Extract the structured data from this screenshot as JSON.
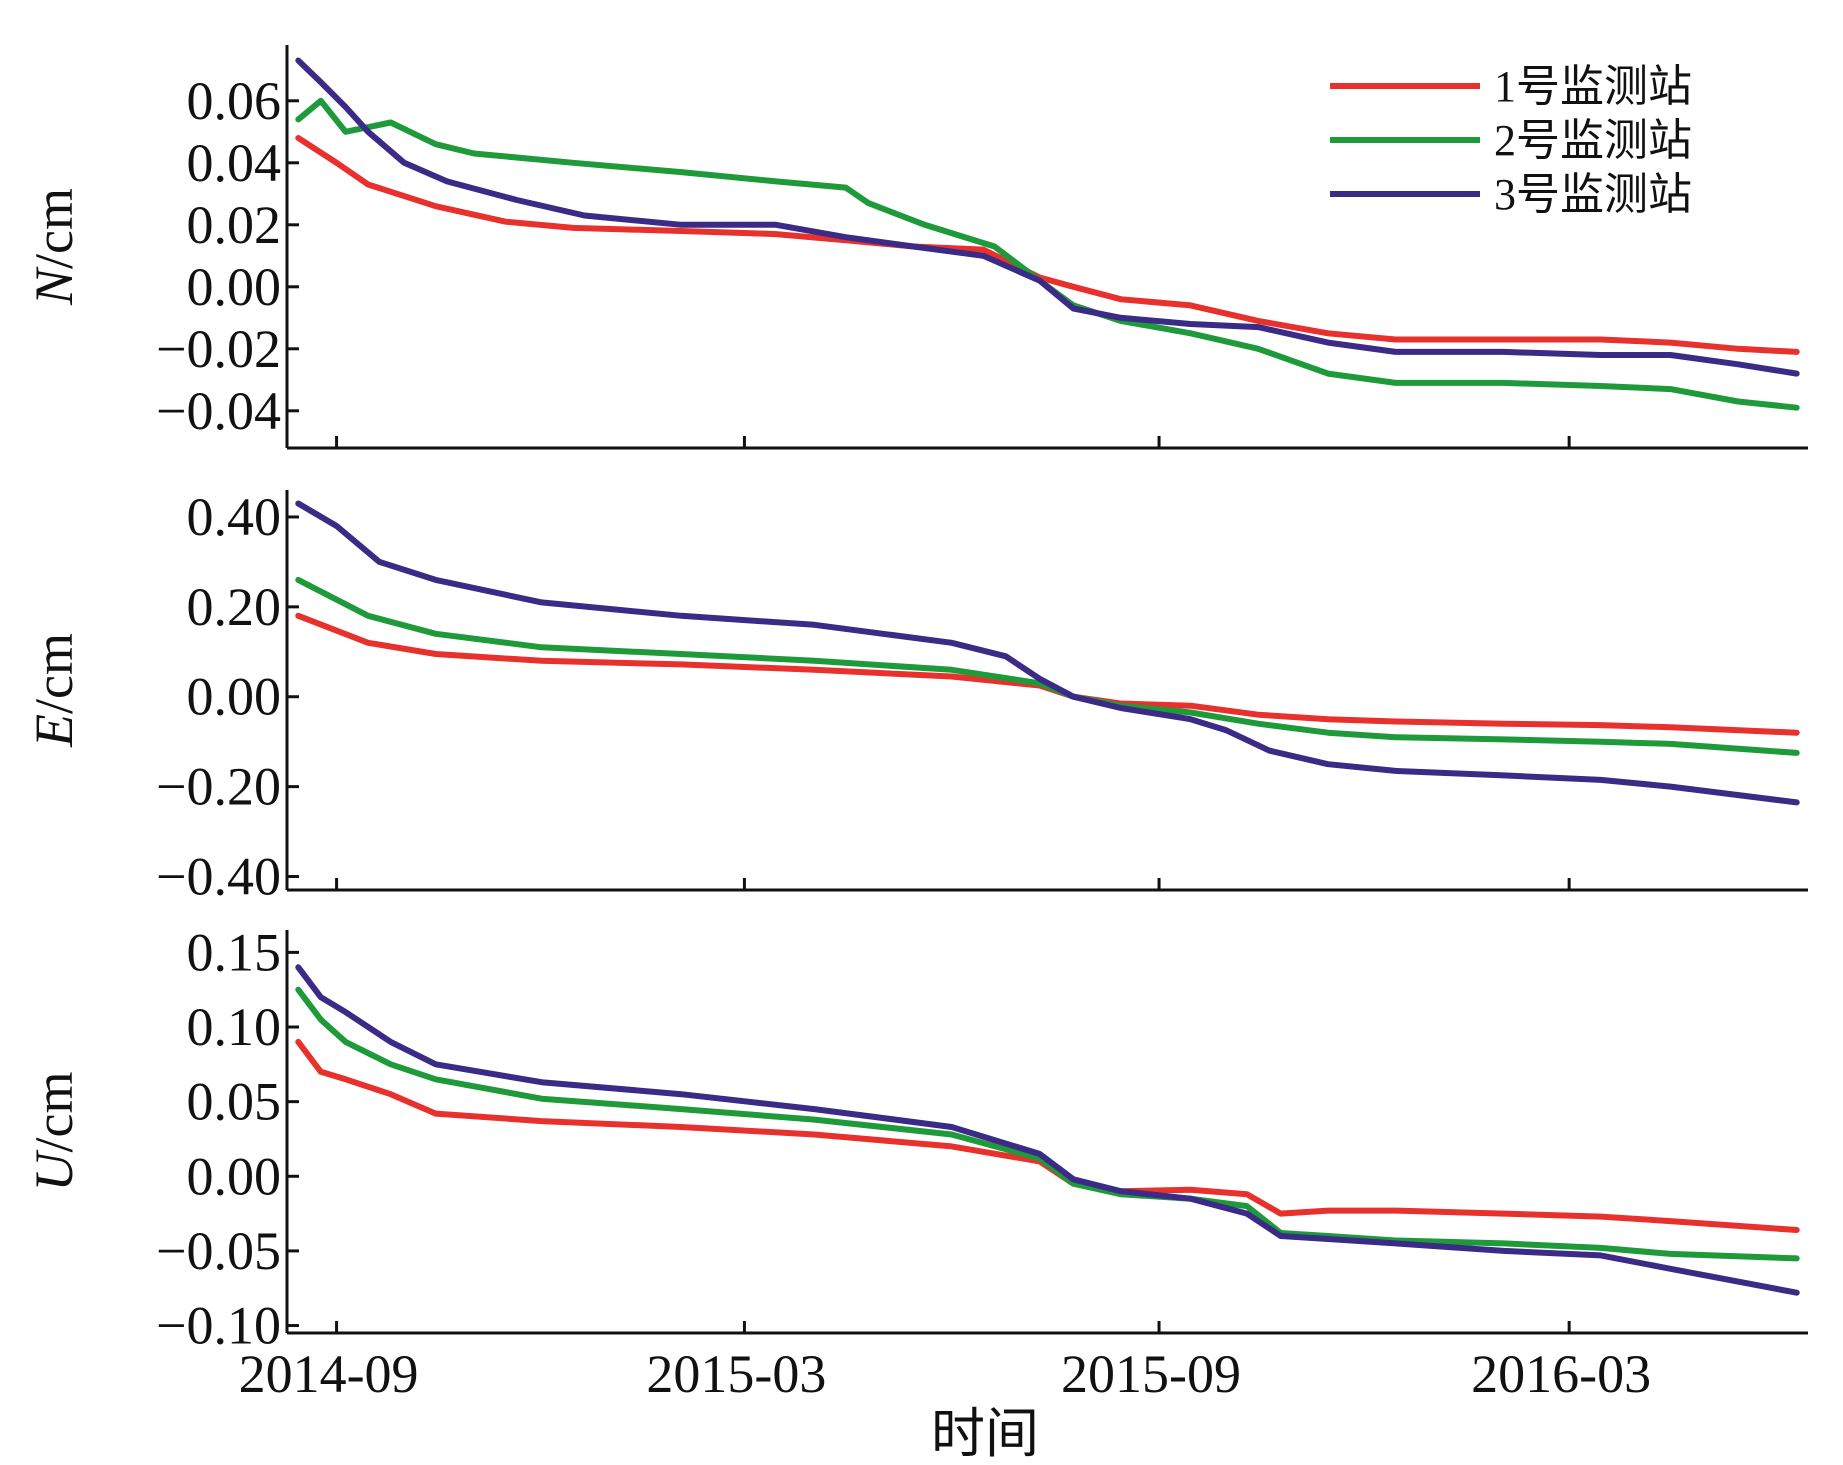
{
  "figure": {
    "x_axis_title": "时间",
    "x_ticks": [
      "2014-09",
      "2015-03",
      "2015-09",
      "2016-03"
    ],
    "legend": [
      {
        "label": "1号监测站",
        "color": "#e8312c"
      },
      {
        "label": "2号监测站",
        "color": "#1f9a3a"
      },
      {
        "label": "3号监测站",
        "color": "#3b2a86"
      }
    ]
  },
  "chart_data": [
    {
      "type": "line",
      "ylabel_var": "N",
      "ylabel_unit": "/cm",
      "x_format": "YYYY-MM",
      "xlim": [
        "2014-08-10",
        "2016-06-15"
      ],
      "ylim": [
        -0.052,
        0.078
      ],
      "y_ticks": [
        "0.06",
        "0.04",
        "0.02",
        "0.00",
        "−0.02",
        "−0.04"
      ],
      "y_tick_values": [
        0.06,
        0.04,
        0.02,
        0.0,
        -0.02,
        -0.04
      ],
      "grid": false,
      "legend_position": "top-right",
      "series": [
        {
          "name": "1号监测站",
          "color": "#e8312c",
          "x": [
            "2014-08-15",
            "2014-09-01",
            "2014-09-15",
            "2014-10-15",
            "2014-11-15",
            "2014-12-15",
            "2015-02-01",
            "2015-03-15",
            "2015-04-15",
            "2015-05-15",
            "2015-06-15",
            "2015-07-10",
            "2015-07-25",
            "2015-08-15",
            "2015-09-15",
            "2015-10-15",
            "2015-11-15",
            "2015-12-15",
            "2016-02-01",
            "2016-03-15",
            "2016-04-15",
            "2016-05-15",
            "2016-06-10"
          ],
          "values": [
            0.048,
            0.04,
            0.033,
            0.026,
            0.021,
            0.019,
            0.018,
            0.017,
            0.015,
            0.013,
            0.012,
            0.003,
            0.0,
            -0.004,
            -0.006,
            -0.011,
            -0.015,
            -0.017,
            -0.017,
            -0.017,
            -0.018,
            -0.02,
            -0.021
          ]
        },
        {
          "name": "2号监测站",
          "color": "#1f9a3a",
          "x": [
            "2014-08-15",
            "2014-08-25",
            "2014-09-05",
            "2014-09-25",
            "2014-10-15",
            "2014-11-01",
            "2014-12-15",
            "2015-02-01",
            "2015-03-15",
            "2015-04-15",
            "2015-04-25",
            "2015-05-20",
            "2015-06-20",
            "2015-07-10",
            "2015-07-25",
            "2015-08-15",
            "2015-09-15",
            "2015-10-15",
            "2015-11-15",
            "2015-12-15",
            "2016-02-01",
            "2016-03-15",
            "2016-04-15",
            "2016-05-15",
            "2016-06-10"
          ],
          "values": [
            0.054,
            0.06,
            0.05,
            0.053,
            0.046,
            0.043,
            0.04,
            0.037,
            0.034,
            0.032,
            0.027,
            0.02,
            0.013,
            0.002,
            -0.006,
            -0.011,
            -0.015,
            -0.02,
            -0.028,
            -0.031,
            -0.031,
            -0.032,
            -0.033,
            -0.037,
            -0.039
          ]
        },
        {
          "name": "3号监测站",
          "color": "#3b2a86",
          "x": [
            "2014-08-15",
            "2014-08-25",
            "2014-09-05",
            "2014-09-15",
            "2014-10-01",
            "2014-10-20",
            "2014-11-20",
            "2014-12-20",
            "2015-02-01",
            "2015-03-15",
            "2015-04-15",
            "2015-05-15",
            "2015-06-15",
            "2015-07-10",
            "2015-07-25",
            "2015-08-15",
            "2015-09-15",
            "2015-10-15",
            "2015-11-15",
            "2015-12-15",
            "2016-02-01",
            "2016-03-15",
            "2016-04-15",
            "2016-05-15",
            "2016-06-10"
          ],
          "values": [
            0.073,
            0.066,
            0.058,
            0.05,
            0.04,
            0.034,
            0.028,
            0.023,
            0.02,
            0.02,
            0.016,
            0.013,
            0.01,
            0.002,
            -0.007,
            -0.01,
            -0.012,
            -0.013,
            -0.018,
            -0.021,
            -0.021,
            -0.022,
            -0.022,
            -0.025,
            -0.028
          ]
        }
      ]
    },
    {
      "type": "line",
      "ylabel_var": "E",
      "ylabel_unit": "/cm",
      "x_format": "YYYY-MM",
      "xlim": [
        "2014-08-10",
        "2016-06-15"
      ],
      "ylim": [
        -0.43,
        0.46
      ],
      "y_ticks": [
        "0.40",
        "0.20",
        "0.00",
        "−0.20",
        "−0.40"
      ],
      "y_tick_values": [
        0.4,
        0.2,
        0.0,
        -0.2,
        -0.4
      ],
      "grid": false,
      "series": [
        {
          "name": "1号监测站",
          "color": "#e8312c",
          "x": [
            "2014-08-15",
            "2014-09-15",
            "2014-10-15",
            "2014-12-01",
            "2015-02-01",
            "2015-04-01",
            "2015-06-01",
            "2015-07-10",
            "2015-07-25",
            "2015-08-15",
            "2015-09-15",
            "2015-10-15",
            "2015-11-15",
            "2015-12-15",
            "2016-02-01",
            "2016-03-15",
            "2016-04-15",
            "2016-06-10"
          ],
          "values": [
            0.18,
            0.12,
            0.095,
            0.08,
            0.072,
            0.06,
            0.045,
            0.025,
            0.0,
            -0.015,
            -0.02,
            -0.04,
            -0.05,
            -0.055,
            -0.06,
            -0.063,
            -0.068,
            -0.08
          ]
        },
        {
          "name": "2号监测站",
          "color": "#1f9a3a",
          "x": [
            "2014-08-15",
            "2014-09-15",
            "2014-10-15",
            "2014-12-01",
            "2015-02-01",
            "2015-04-01",
            "2015-06-01",
            "2015-07-10",
            "2015-07-25",
            "2015-08-15",
            "2015-09-15",
            "2015-10-15",
            "2015-11-15",
            "2015-12-15",
            "2016-02-01",
            "2016-03-15",
            "2016-04-15",
            "2016-06-10"
          ],
          "values": [
            0.26,
            0.18,
            0.14,
            0.11,
            0.095,
            0.08,
            0.06,
            0.03,
            0.0,
            -0.02,
            -0.035,
            -0.06,
            -0.08,
            -0.09,
            -0.095,
            -0.1,
            -0.105,
            -0.125
          ]
        },
        {
          "name": "3号监测站",
          "color": "#3b2a86",
          "x": [
            "2014-08-15",
            "2014-09-01",
            "2014-09-20",
            "2014-10-15",
            "2014-12-01",
            "2015-02-01",
            "2015-04-01",
            "2015-06-01",
            "2015-06-25",
            "2015-07-10",
            "2015-07-25",
            "2015-08-15",
            "2015-09-15",
            "2015-10-01",
            "2015-10-20",
            "2015-11-15",
            "2015-12-15",
            "2016-02-01",
            "2016-03-15",
            "2016-04-15",
            "2016-06-10"
          ],
          "values": [
            0.43,
            0.38,
            0.3,
            0.26,
            0.21,
            0.18,
            0.16,
            0.12,
            0.09,
            0.04,
            0.0,
            -0.025,
            -0.05,
            -0.075,
            -0.12,
            -0.15,
            -0.165,
            -0.175,
            -0.185,
            -0.2,
            -0.235
          ]
        }
      ]
    },
    {
      "type": "line",
      "ylabel_var": "U",
      "ylabel_unit": "/cm",
      "x_format": "YYYY-MM",
      "xlim": [
        "2014-08-10",
        "2016-06-15"
      ],
      "ylim": [
        -0.105,
        0.165
      ],
      "y_ticks": [
        "0.15",
        "0.10",
        "0.05",
        "0.00",
        "−0.05",
        "−0.10"
      ],
      "y_tick_values": [
        0.15,
        0.1,
        0.05,
        0.0,
        -0.05,
        -0.1
      ],
      "grid": false,
      "series": [
        {
          "name": "1号监测站",
          "color": "#e8312c",
          "x": [
            "2014-08-15",
            "2014-08-25",
            "2014-09-05",
            "2014-09-25",
            "2014-10-15",
            "2014-12-01",
            "2015-02-01",
            "2015-04-01",
            "2015-06-01",
            "2015-07-10",
            "2015-07-25",
            "2015-08-15",
            "2015-09-15",
            "2015-10-10",
            "2015-10-25",
            "2015-11-15",
            "2015-12-15",
            "2016-02-01",
            "2016-03-15",
            "2016-04-15",
            "2016-06-10"
          ],
          "values": [
            0.09,
            0.07,
            0.065,
            0.055,
            0.042,
            0.037,
            0.033,
            0.028,
            0.02,
            0.01,
            -0.005,
            -0.01,
            -0.009,
            -0.012,
            -0.025,
            -0.023,
            -0.023,
            -0.025,
            -0.027,
            -0.03,
            -0.036
          ]
        },
        {
          "name": "2号监测站",
          "color": "#1f9a3a",
          "x": [
            "2014-08-15",
            "2014-08-25",
            "2014-09-05",
            "2014-09-25",
            "2014-10-15",
            "2014-12-01",
            "2015-02-01",
            "2015-04-01",
            "2015-06-01",
            "2015-07-10",
            "2015-07-25",
            "2015-08-15",
            "2015-09-15",
            "2015-10-10",
            "2015-10-25",
            "2015-11-15",
            "2015-12-15",
            "2016-02-01",
            "2016-03-15",
            "2016-04-15",
            "2016-06-10"
          ],
          "values": [
            0.125,
            0.105,
            0.09,
            0.075,
            0.065,
            0.052,
            0.045,
            0.038,
            0.028,
            0.012,
            -0.005,
            -0.012,
            -0.015,
            -0.02,
            -0.038,
            -0.04,
            -0.043,
            -0.045,
            -0.048,
            -0.052,
            -0.055
          ]
        },
        {
          "name": "3号监测站",
          "color": "#3b2a86",
          "x": [
            "2014-08-15",
            "2014-08-25",
            "2014-09-05",
            "2014-09-25",
            "2014-10-15",
            "2014-12-01",
            "2015-02-01",
            "2015-04-01",
            "2015-06-01",
            "2015-07-10",
            "2015-07-25",
            "2015-08-15",
            "2015-09-15",
            "2015-10-10",
            "2015-10-25",
            "2015-11-15",
            "2015-12-15",
            "2016-02-01",
            "2016-03-15",
            "2016-04-15",
            "2016-06-10"
          ],
          "values": [
            0.14,
            0.12,
            0.11,
            0.09,
            0.075,
            0.063,
            0.055,
            0.045,
            0.033,
            0.015,
            -0.002,
            -0.01,
            -0.015,
            -0.025,
            -0.04,
            -0.042,
            -0.045,
            -0.05,
            -0.053,
            -0.062,
            -0.078
          ]
        }
      ]
    }
  ]
}
